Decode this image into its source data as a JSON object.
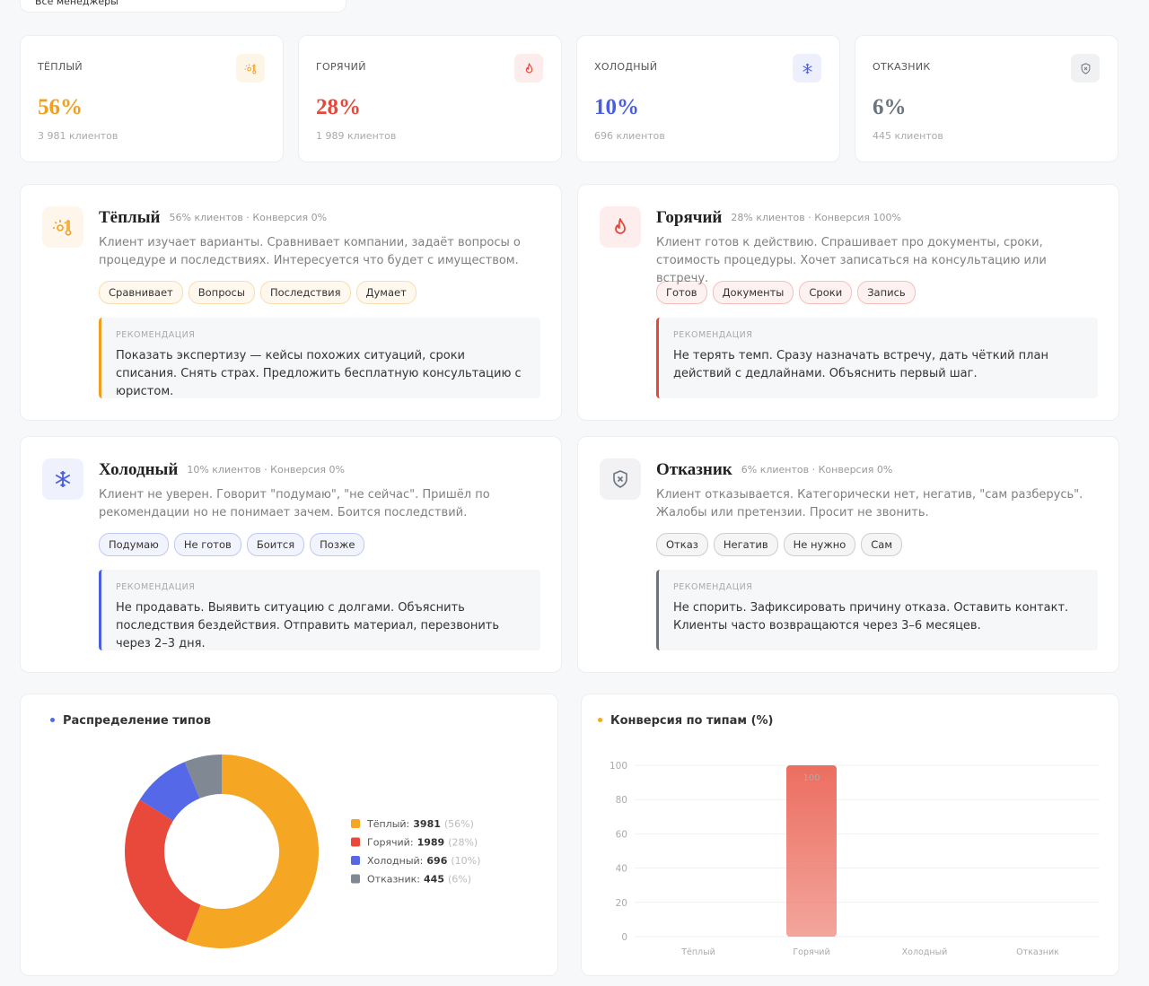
{
  "filter": {
    "label": "Все менеджеры"
  },
  "stats": [
    {
      "label": "ТЁПЛЫЙ",
      "value": "56%",
      "clients": "3 981 клиентов",
      "color": "#f0a020"
    },
    {
      "label": "ГОРЯЧИЙ",
      "value": "28%",
      "clients": "1 989 клиентов",
      "color": "#e5483a"
    },
    {
      "label": "ХОЛОДНЫЙ",
      "value": "10%",
      "clients": "696 клиентов",
      "color": "#4a5fe0"
    },
    {
      "label": "ОТКАЗНИК",
      "value": "6%",
      "clients": "445 клиентов",
      "color": "#6b7480"
    }
  ],
  "types": [
    {
      "title": "Тёплый",
      "meta": "56% клиентов · Конверсия 0%",
      "description": "Клиент изучает варианты. Сравнивает компании, задаёт вопросы о процедуре и последствиях. Интересуется что будет с имуществом.",
      "tags": [
        "Сравнивает",
        "Вопросы",
        "Последствия",
        "Думает"
      ],
      "recommendation_label": "РЕКОМЕНДАЦИЯ",
      "recommendation": "Показать экспертизу — кейсы похожих ситуаций, сроки списания. Снять страх. Предложить бесплатную консультацию с юристом.",
      "color": "#f0a020"
    },
    {
      "title": "Горячий",
      "meta": "28% клиентов · Конверсия 100%",
      "description": "Клиент готов к действию. Спрашивает про документы, сроки, стоимость процедуры. Хочет записаться на консультацию или встречу.",
      "tags": [
        "Готов",
        "Документы",
        "Сроки",
        "Запись"
      ],
      "recommendation_label": "РЕКОМЕНДАЦИЯ",
      "recommendation": "Не терять темп. Сразу назначать встречу, дать чёткий план действий с дедлайнами. Объяснить первый шаг.",
      "color": "#e5483a"
    },
    {
      "title": "Холодный",
      "meta": "10% клиентов · Конверсия 0%",
      "description": "Клиент не уверен. Говорит \"подумаю\", \"не сейчас\". Пришёл по рекомендации но не понимает зачем. Боится последствий.",
      "tags": [
        "Подумаю",
        "Не готов",
        "Боится",
        "Позже"
      ],
      "recommendation_label": "РЕКОМЕНДАЦИЯ",
      "recommendation": "Не продавать. Выявить ситуацию с долгами. Объяснить последствия бездействия. Отправить материал, перезвонить через 2–3 дня.",
      "color": "#4a5fe0"
    },
    {
      "title": "Отказник",
      "meta": "6% клиентов · Конверсия 0%",
      "description": "Клиент отказывается. Категорически нет, негатив, \"сам разберусь\". Жалобы или претензии. Просит не звонить.",
      "tags": [
        "Отказ",
        "Негатив",
        "Не нужно",
        "Сам"
      ],
      "recommendation_label": "РЕКОМЕНДАЦИЯ",
      "recommendation": "Не спорить. Зафиксировать причину отказа. Оставить контакт. Клиенты часто возвращаются через 3–6 месяцев.",
      "color": "#6b7480"
    }
  ],
  "chart_data": [
    {
      "type": "pie",
      "title": "Распределение типов",
      "donut": true,
      "categories": [
        "Тёплый",
        "Горячий",
        "Холодный",
        "Отказник"
      ],
      "values": [
        3981,
        1989,
        696,
        445
      ],
      "percent_labels": [
        "(56%)",
        "(28%)",
        "(10%)",
        "(6%)"
      ],
      "colors": [
        "#f5a623",
        "#e8493b",
        "#5468e8",
        "#7f8893"
      ],
      "title_dot": "#5468e8"
    },
    {
      "type": "bar",
      "title": "Конверсия по типам (%)",
      "categories": [
        "Тёплый",
        "Горячий",
        "Холодный",
        "Отказник"
      ],
      "values": [
        0,
        100,
        0,
        0
      ],
      "value_labels": [
        null,
        "100",
        null,
        null
      ],
      "ylim": [
        0,
        100
      ],
      "yticks": [
        0,
        20,
        40,
        60,
        80,
        100
      ],
      "grid": true,
      "color": "#ec6e60",
      "title_dot": "#f5a623"
    }
  ]
}
